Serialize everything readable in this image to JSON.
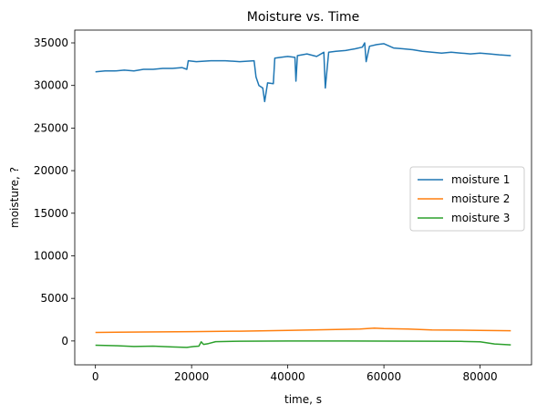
{
  "chart_data": {
    "type": "line",
    "title": "Moisture vs. Time",
    "xlabel": "time, s",
    "ylabel": "moisture, ?",
    "xlim": [
      -4300,
      90700
    ],
    "ylim": [
      -2800,
      36500
    ],
    "xticks": [
      0,
      20000,
      40000,
      60000,
      80000
    ],
    "yticks": [
      0,
      5000,
      10000,
      15000,
      20000,
      25000,
      30000,
      35000
    ],
    "grid": false,
    "legend_position": "center-right",
    "series": [
      {
        "name": "moisture 1",
        "color": "#1f77b4",
        "x": [
          0,
          2000,
          4000,
          6000,
          8000,
          10000,
          12000,
          14000,
          16000,
          18000,
          19000,
          19300,
          21000,
          24000,
          27000,
          30000,
          33000,
          33400,
          34000,
          34800,
          35200,
          35800,
          37000,
          37300,
          38500,
          40000,
          41500,
          41700,
          42000,
          44000,
          46000,
          47500,
          47800,
          48500,
          50000,
          52000,
          54000,
          55500,
          56000,
          56300,
          57000,
          58500,
          60000,
          62000,
          64000,
          66000,
          68000,
          70000,
          72000,
          74000,
          76000,
          78000,
          80000,
          82000,
          84000,
          86400
        ],
        "values": [
          31600,
          31700,
          31700,
          31800,
          31700,
          31900,
          31900,
          32000,
          32000,
          32100,
          31900,
          32900,
          32800,
          32900,
          32900,
          32800,
          32900,
          31000,
          30000,
          29700,
          28100,
          30300,
          30200,
          33200,
          33300,
          33400,
          33300,
          30500,
          33500,
          33700,
          33400,
          33900,
          29700,
          33900,
          34000,
          34100,
          34300,
          34500,
          35000,
          32800,
          34600,
          34800,
          34900,
          34400,
          34300,
          34200,
          34000,
          33900,
          33800,
          33900,
          33800,
          33700,
          33800,
          33700,
          33600,
          33500
        ]
      },
      {
        "name": "moisture 2",
        "color": "#ff7f0e",
        "x": [
          0,
          10000,
          20000,
          30000,
          40000,
          50000,
          55000,
          58000,
          60000,
          65000,
          70000,
          80000,
          86400
        ],
        "values": [
          1000,
          1050,
          1100,
          1150,
          1250,
          1350,
          1400,
          1500,
          1450,
          1400,
          1300,
          1250,
          1200
        ]
      },
      {
        "name": "moisture 3",
        "color": "#2ca02c",
        "x": [
          0,
          4000,
          8000,
          12000,
          16000,
          19000,
          20500,
          21500,
          22000,
          22500,
          23500,
          25000,
          30000,
          40000,
          50000,
          60000,
          70000,
          76000,
          80000,
          83000,
          86400
        ],
        "values": [
          -500,
          -550,
          -650,
          -600,
          -700,
          -750,
          -650,
          -600,
          -100,
          -400,
          -300,
          -80,
          -30,
          0,
          0,
          -20,
          -30,
          -50,
          -100,
          -350,
          -450
        ]
      }
    ]
  }
}
